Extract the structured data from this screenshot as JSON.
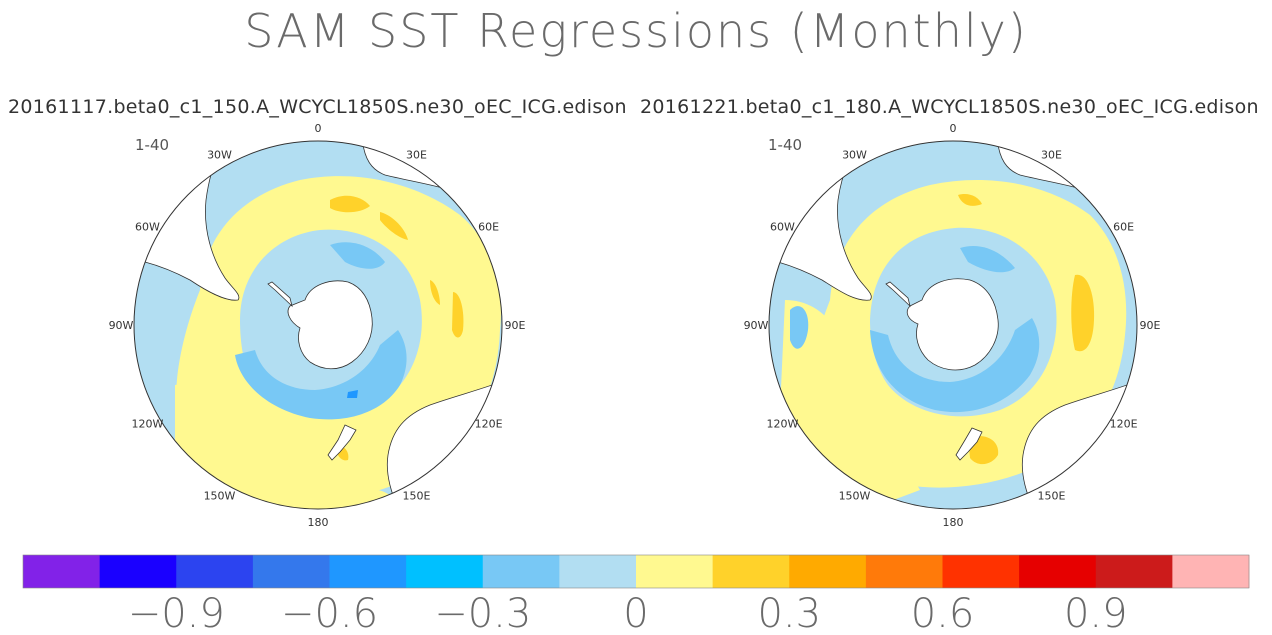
{
  "title": "SAM SST Regressions (Monthly)",
  "chart_data": [
    {
      "type": "heatmap",
      "title": "20161117.beta0_c1_150.A_WCYCL1850S.ne30_oEC_ICG.edison",
      "corner_label": "1-40",
      "projection": "south polar stereographic",
      "longitude_labels": [
        "0",
        "30E",
        "60E",
        "90E",
        "120E",
        "150E",
        "180",
        "150W",
        "120W",
        "90W",
        "60W",
        "30W"
      ],
      "field_pattern": [
        {
          "zone": "Antarctic coastal belt",
          "value_range": [
            -0.3,
            0
          ]
        },
        {
          "zone": "Southern Ocean ring (~55-65S)",
          "value_range": [
            -0.3,
            -0.15
          ]
        },
        {
          "zone": "Mid-latitude band (~40-50S)",
          "value_range": [
            0,
            0.3
          ]
        },
        {
          "zone": "South Atlantic / Indian Ocean maxima",
          "value_range": [
            0.15,
            0.3
          ]
        },
        {
          "zone": "South Pacific mid-latitudes",
          "value_range": [
            0,
            0.15
          ]
        },
        {
          "zone": "Subtropics (~30S)",
          "value_range": [
            -0.15,
            0
          ]
        }
      ]
    },
    {
      "type": "heatmap",
      "title": "20161221.beta0_c1_180.A_WCYCL1850S.ne30_oEC_ICG.edison",
      "corner_label": "1-40",
      "projection": "south polar stereographic",
      "longitude_labels": [
        "0",
        "30E",
        "60E",
        "90E",
        "120E",
        "150E",
        "180",
        "150W",
        "120W",
        "90W",
        "60W",
        "30W"
      ],
      "field_pattern": [
        {
          "zone": "Antarctic coastal belt",
          "value_range": [
            -0.3,
            0
          ]
        },
        {
          "zone": "Southern Ocean ring (~55-65S)",
          "value_range": [
            -0.3,
            -0.15
          ]
        },
        {
          "zone": "Mid-latitude band (~40-50S)",
          "value_range": [
            0,
            0.15
          ]
        },
        {
          "zone": "Indian Ocean maximum (~90E)",
          "value_range": [
            0.15,
            0.3
          ]
        },
        {
          "zone": "New Zealand region maximum",
          "value_range": [
            0.15,
            0.3
          ]
        },
        {
          "zone": "Subtropics (~30S)",
          "value_range": [
            -0.15,
            0
          ]
        }
      ]
    }
  ],
  "colorbar": {
    "bins": [
      {
        "lo": null,
        "hi": -1.05,
        "color": "#8222e8"
      },
      {
        "lo": -1.05,
        "hi": -0.9,
        "color": "#1a00ff"
      },
      {
        "lo": -0.9,
        "hi": -0.75,
        "color": "#2c44f0"
      },
      {
        "lo": -0.75,
        "hi": -0.6,
        "color": "#3478ec"
      },
      {
        "lo": -0.6,
        "hi": -0.45,
        "color": "#1f97ff"
      },
      {
        "lo": -0.45,
        "hi": -0.3,
        "color": "#00c0ff"
      },
      {
        "lo": -0.3,
        "hi": -0.15,
        "color": "#78c8f5"
      },
      {
        "lo": -0.15,
        "hi": 0,
        "color": "#b2def2"
      },
      {
        "lo": 0,
        "hi": 0.15,
        "color": "#fff990"
      },
      {
        "lo": 0.15,
        "hi": 0.3,
        "color": "#ffd22a"
      },
      {
        "lo": 0.3,
        "hi": 0.45,
        "color": "#ffaa00"
      },
      {
        "lo": 0.45,
        "hi": 0.6,
        "color": "#ff7a0a"
      },
      {
        "lo": 0.6,
        "hi": 0.75,
        "color": "#ff3200"
      },
      {
        "lo": 0.75,
        "hi": 0.9,
        "color": "#e60000"
      },
      {
        "lo": 0.9,
        "hi": 1.05,
        "color": "#cc1b1b"
      },
      {
        "lo": 1.05,
        "hi": null,
        "color": "#ffb4b4"
      }
    ],
    "tick_labels": [
      "−0.9",
      "−0.6",
      "−0.3",
      "0",
      "0.3",
      "0.6",
      "0.9"
    ],
    "tick_values": [
      -0.9,
      -0.6,
      -0.3,
      0,
      0.3,
      0.6,
      0.9
    ]
  }
}
